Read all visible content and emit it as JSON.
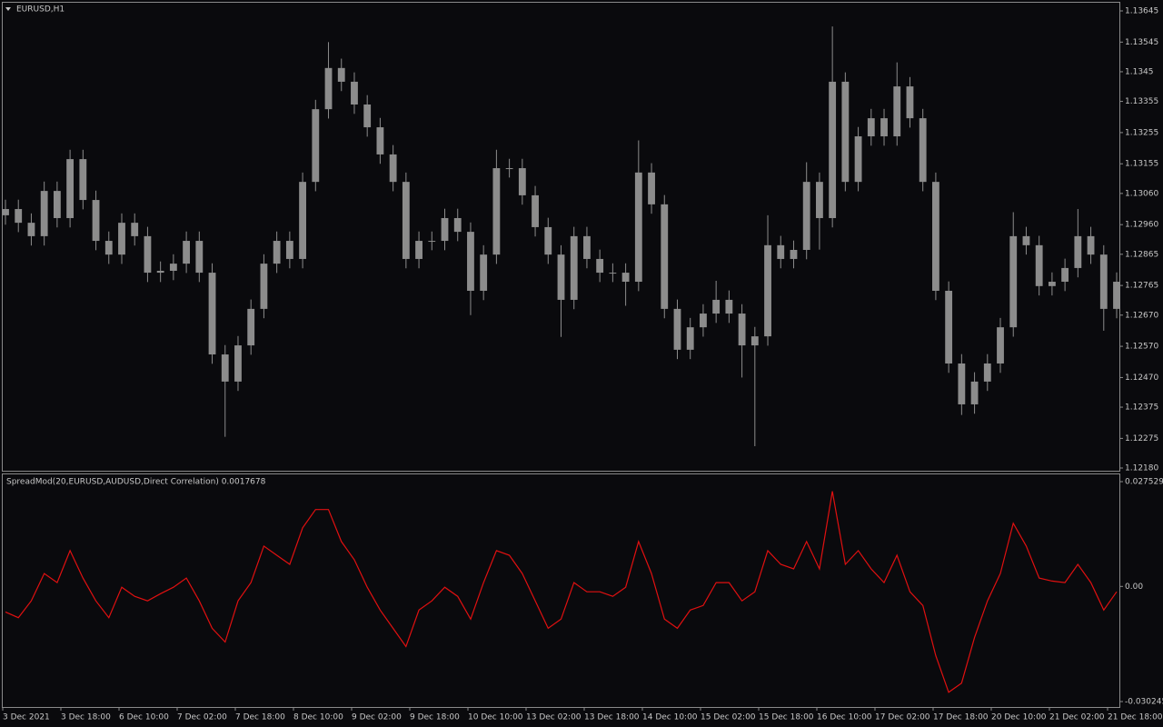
{
  "chart_data": [
    {
      "type": "candlestick",
      "title": "EURUSD,H1",
      "color": "#8c8c8c",
      "open": [
        1.1299,
        1.1301,
        1.12966,
        1.12923,
        1.13068,
        1.12981,
        1.1317,
        1.13039,
        1.12908,
        1.12864,
        1.12966,
        1.12923,
        1.12806,
        1.12812,
        1.12835,
        1.12908,
        1.12806,
        1.12544,
        1.12457,
        1.12573,
        1.1269,
        1.12835,
        1.12908,
        1.1285,
        1.13097,
        1.1333,
        1.13462,
        1.13418,
        1.13345,
        1.13272,
        1.13185,
        1.13097,
        1.1285,
        1.12908,
        1.12908,
        1.12981,
        1.12937,
        1.12748,
        1.12864,
        1.13141,
        1.13141,
        1.13054,
        1.12952,
        1.12864,
        1.12719,
        1.12923,
        1.1285,
        1.12806,
        1.12806,
        1.12777,
        1.13127,
        1.13025,
        1.1269,
        1.12559,
        1.12631,
        1.12675,
        1.12719,
        1.12675,
        1.12573,
        1.12602,
        1.12894,
        1.1285,
        1.12879,
        1.13097,
        1.12981,
        1.13418,
        1.13097,
        1.13243,
        1.13301,
        1.13243,
        1.13403,
        1.13301,
        1.13097,
        1.12748,
        1.12515,
        1.12384,
        1.12457,
        1.12515,
        1.12631,
        1.12923,
        1.12894,
        1.12763,
        1.12777,
        1.12821,
        1.12923,
        1.12864,
        1.1269
      ],
      "high": [
        1.1304,
        1.1304,
        1.12996,
        1.13098,
        1.13098,
        1.132,
        1.132,
        1.13069,
        1.12938,
        1.12996,
        1.12996,
        1.12953,
        1.12842,
        1.12865,
        1.12938,
        1.12938,
        1.12836,
        1.12574,
        1.12603,
        1.1272,
        1.12865,
        1.12938,
        1.12938,
        1.13127,
        1.1336,
        1.13545,
        1.13492,
        1.13448,
        1.13375,
        1.13302,
        1.13215,
        1.13127,
        1.12938,
        1.12938,
        1.13011,
        1.13011,
        1.12967,
        1.12894,
        1.132,
        1.13171,
        1.13171,
        1.13084,
        1.12982,
        1.12894,
        1.12953,
        1.12953,
        1.1288,
        1.12836,
        1.12836,
        1.1323,
        1.13157,
        1.13055,
        1.1272,
        1.12661,
        1.12705,
        1.1278,
        1.12749,
        1.12705,
        1.12632,
        1.1299,
        1.12924,
        1.12909,
        1.1316,
        1.13127,
        1.13595,
        1.13448,
        1.13273,
        1.13331,
        1.13331,
        1.1348,
        1.13433,
        1.13331,
        1.13127,
        1.12778,
        1.12545,
        1.12487,
        1.12545,
        1.12661,
        1.13,
        1.12953,
        1.12924,
        1.12807,
        1.12851,
        1.1301,
        1.12953,
        1.12894,
        1.12807
      ],
      "low": [
        1.1296,
        1.12936,
        1.12893,
        1.12893,
        1.12951,
        1.12951,
        1.13009,
        1.12878,
        1.12834,
        1.12834,
        1.12893,
        1.12776,
        1.12776,
        1.12782,
        1.12805,
        1.12776,
        1.12514,
        1.1228,
        1.12427,
        1.12543,
        1.1266,
        1.12805,
        1.1282,
        1.1282,
        1.13067,
        1.133,
        1.13388,
        1.13315,
        1.13242,
        1.13155,
        1.13067,
        1.1282,
        1.1282,
        1.12878,
        1.12878,
        1.12907,
        1.1267,
        1.12718,
        1.12834,
        1.13111,
        1.13024,
        1.12922,
        1.12834,
        1.126,
        1.12689,
        1.1282,
        1.12776,
        1.12776,
        1.127,
        1.12747,
        1.12995,
        1.1266,
        1.12529,
        1.12529,
        1.12601,
        1.12645,
        1.12645,
        1.1247,
        1.1225,
        1.12572,
        1.1282,
        1.1282,
        1.12849,
        1.1288,
        1.12951,
        1.13067,
        1.13067,
        1.13213,
        1.13213,
        1.13213,
        1.13271,
        1.13067,
        1.12718,
        1.12485,
        1.1235,
        1.12354,
        1.12427,
        1.12485,
        1.12601,
        1.12864,
        1.12733,
        1.12733,
        1.12747,
        1.12791,
        1.12834,
        1.1262,
        1.1266
      ],
      "close": [
        1.1301,
        1.12966,
        1.12923,
        1.13068,
        1.12981,
        1.1317,
        1.13039,
        1.12908,
        1.12864,
        1.12966,
        1.12923,
        1.12806,
        1.12812,
        1.12835,
        1.12908,
        1.12806,
        1.12544,
        1.12457,
        1.12573,
        1.1269,
        1.12835,
        1.12908,
        1.1285,
        1.13097,
        1.1333,
        1.13462,
        1.13418,
        1.13345,
        1.13272,
        1.13185,
        1.13097,
        1.1285,
        1.12908,
        1.12908,
        1.12981,
        1.12937,
        1.12748,
        1.12864,
        1.13141,
        1.13141,
        1.13054,
        1.12952,
        1.12864,
        1.12719,
        1.12923,
        1.1285,
        1.12806,
        1.12806,
        1.12777,
        1.13127,
        1.13025,
        1.1269,
        1.12559,
        1.12631,
        1.12675,
        1.12719,
        1.12675,
        1.12573,
        1.12602,
        1.12894,
        1.1285,
        1.12879,
        1.13097,
        1.12981,
        1.13418,
        1.13097,
        1.13243,
        1.13301,
        1.13243,
        1.13403,
        1.13301,
        1.13097,
        1.12748,
        1.12515,
        1.12384,
        1.12457,
        1.12515,
        1.12631,
        1.12923,
        1.12894,
        1.12763,
        1.12777,
        1.12821,
        1.12923,
        1.12864,
        1.1269,
        1.12777
      ],
      "ylim": [
        1.1218,
        1.13645
      ],
      "yticks": [
        1.13645,
        1.13545,
        1.1345,
        1.13355,
        1.13255,
        1.13155,
        {
          "value": 1.1306,
          "label": "1.13060"
        },
        {
          "value": 1.1296,
          "label": "1.12960"
        },
        1.12865,
        1.12765,
        {
          "value": 1.1267,
          "label": "1.12670"
        },
        {
          "value": 1.1257,
          "label": "1.12570"
        },
        {
          "value": 1.1247,
          "label": "1.12470"
        },
        1.12375,
        1.12275,
        {
          "value": 1.1218,
          "label": "1.12180"
        }
      ],
      "x_labels": [
        "3 Dec 2021",
        "3 Dec 18:00",
        "6 Dec 10:00",
        "7 Dec 02:00",
        "7 Dec 18:00",
        "8 Dec 10:00",
        "9 Dec 02:00",
        "9 Dec 18:00",
        "10 Dec 10:00",
        "13 Dec 02:00",
        "13 Dec 18:00",
        "14 Dec 10:00",
        "15 Dec 02:00",
        "15 Dec 18:00",
        "16 Dec 10:00",
        "17 Dec 02:00",
        "17 Dec 18:00",
        "20 Dec 10:00",
        "21 Dec 02:00",
        "21 Dec 18:00"
      ]
    },
    {
      "type": "line",
      "title": "SpreadMod(20,EURUSD,AUDUSD,Direct Correlation) 0.0017678",
      "color": "#e01010",
      "values": [
        -0.0067,
        -0.0082,
        -0.0038,
        0.0034,
        0.001,
        0.0094,
        0.0022,
        -0.0038,
        -0.0082,
        -0.0002,
        -0.0026,
        -0.0038,
        -0.0019,
        -0.0002,
        0.0022,
        -0.0038,
        -0.011,
        -0.0146,
        -0.0038,
        0.001,
        0.0106,
        0.0082,
        0.0058,
        0.0154,
        0.0202,
        0.0202,
        0.0118,
        0.007,
        -0.0002,
        -0.0062,
        -0.011,
        -0.0158,
        -0.0062,
        -0.0038,
        -0.0002,
        -0.0026,
        -0.0086,
        0.001,
        0.0094,
        0.0082,
        0.0034,
        -0.0038,
        -0.011,
        -0.0086,
        0.001,
        -0.0014,
        -0.0014,
        -0.0026,
        -0.0002,
        0.0118,
        0.0034,
        -0.0086,
        -0.011,
        -0.0062,
        -0.005,
        0.001,
        0.001,
        -0.0038,
        -0.0014,
        0.0094,
        0.0058,
        0.0046,
        0.0118,
        0.0046,
        0.025,
        0.0058,
        0.0094,
        0.0046,
        0.001,
        0.0082,
        -0.0014,
        -0.005,
        -0.0182,
        -0.0278,
        -0.0254,
        -0.0134,
        -0.0038,
        0.0034,
        0.0166,
        0.0106,
        0.0022,
        0.0014,
        0.001,
        0.0058,
        0.001,
        -0.0062,
        -0.0014
      ],
      "ylim": [
        -0.030245,
        0.0275295
      ],
      "yticks": [
        0.0275295,
        {
          "value": 0,
          "label": "0.00"
        },
        -0.030245
      ]
    }
  ]
}
